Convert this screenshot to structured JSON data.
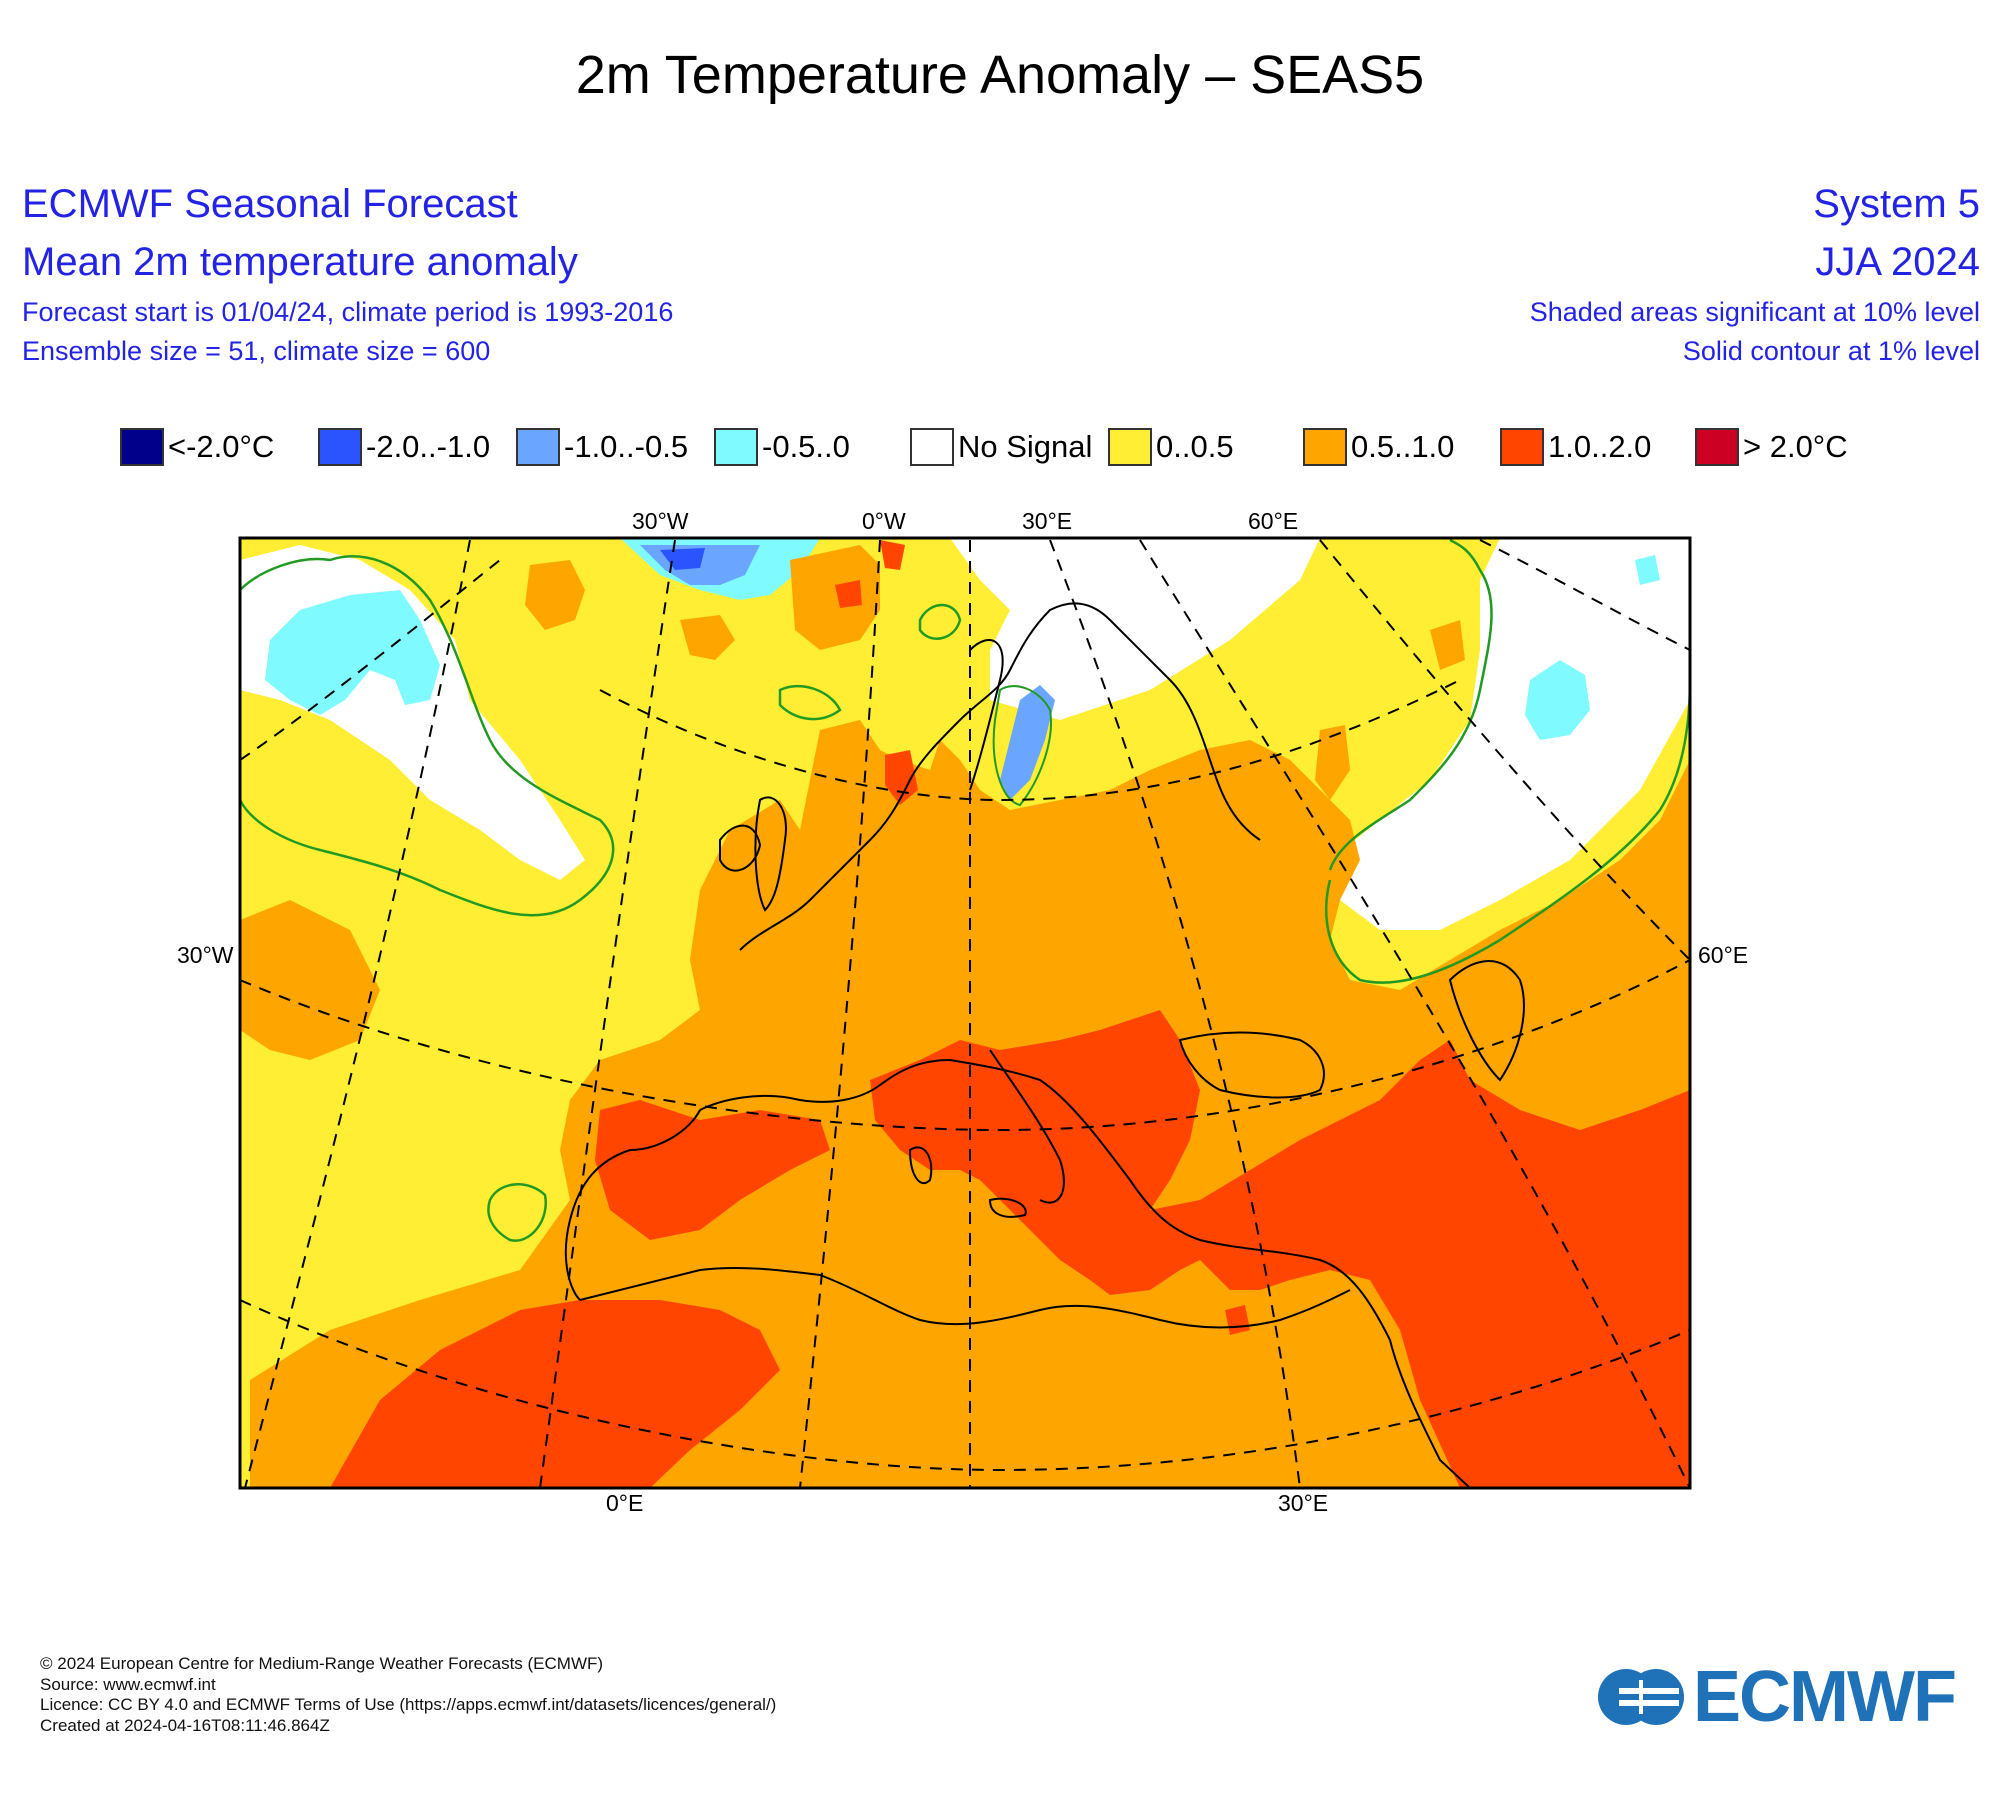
{
  "title": "2m Temperature Anomaly – SEAS5",
  "header": {
    "left": {
      "line1": "ECMWF Seasonal Forecast",
      "line2": "Mean 2m temperature anomaly",
      "line3": "Forecast start is 01/04/24, climate period is 1993-2016",
      "line4": "Ensemble size = 51, climate size = 600"
    },
    "right": {
      "line1": "System 5",
      "line2": "JJA 2024",
      "line3": "Shaded areas significant at 10% level",
      "line4": "Solid contour at 1% level"
    }
  },
  "legend": [
    {
      "label": "<-2.0°C",
      "color": "#00008b"
    },
    {
      "label": "-2.0..-1.0",
      "color": "#2b54ff"
    },
    {
      "label": "-1.0..-0.5",
      "color": "#6aa6ff"
    },
    {
      "label": "-0.5..0",
      "color": "#7ffbff"
    },
    {
      "label": "No Signal",
      "color": "#ffffff"
    },
    {
      "label": "0..0.5",
      "color": "#ffee33"
    },
    {
      "label": "0.5..1.0",
      "color": "#ffa500"
    },
    {
      "label": "1.0..2.0",
      "color": "#ff4500"
    },
    {
      "label": "> 2.0°C",
      "color": "#cc0022"
    }
  ],
  "axis_labels": {
    "top": [
      "30°W",
      "0°W",
      "30°E",
      "60°E"
    ],
    "left": "30°W",
    "right": "60°E",
    "bottom": [
      "0°E",
      "30°E"
    ]
  },
  "footer": {
    "line1": "© 2024 European Centre for Medium-Range Weather Forecasts (ECMWF)",
    "line2": "Source: www.ecmwf.int",
    "line3": "Licence: CC BY 4.0 and ECMWF Terms of Use (https://apps.ecmwf.int/datasets/licences/general/)",
    "line4": "Created at 2024-04-16T08:11:46.864Z"
  },
  "logo": {
    "text": "ECMWF",
    "color": "#1f71b8"
  }
}
